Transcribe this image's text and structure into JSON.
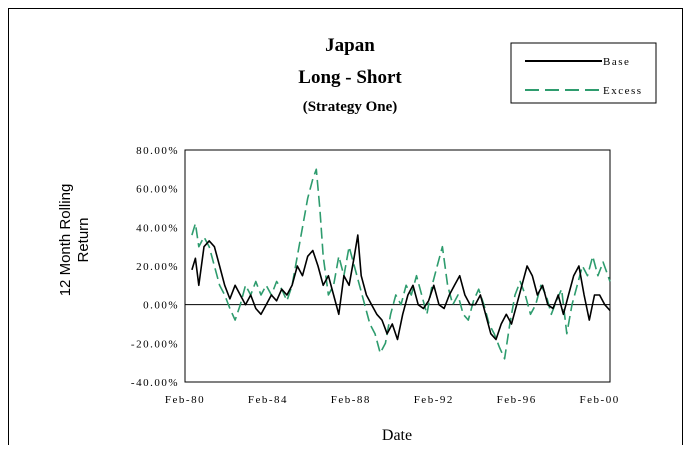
{
  "chart_data": {
    "type": "line",
    "title": [
      "Japan",
      "Long - Short",
      "(Strategy One)"
    ],
    "xlabel": "Date",
    "ylabel": [
      "12 Month Rolling",
      "Return"
    ],
    "x_start": "1980-02",
    "x_end": "2000-08",
    "x_tick_labels": [
      "Feb-80",
      "Feb-84",
      "Feb-88",
      "Feb-92",
      "Feb-96",
      "Feb-00"
    ],
    "ylim": [
      -0.4,
      0.8
    ],
    "y_tick_labels": [
      "80.00%",
      "60.00%",
      "40.00%",
      "20.00%",
      "0.00%",
      "-20.00%",
      "-40.00%"
    ],
    "legend_position": "top-right",
    "grid": false,
    "series": [
      {
        "name": "Base",
        "color": "#000000",
        "dash": "solid",
        "points": [
          [
            "1980-06",
            0.18
          ],
          [
            "1980-08",
            0.24
          ],
          [
            "1980-10",
            0.1
          ],
          [
            "1981-01",
            0.3
          ],
          [
            "1981-04",
            0.33
          ],
          [
            "1981-07",
            0.3
          ],
          [
            "1981-10",
            0.2
          ],
          [
            "1982-01",
            0.1
          ],
          [
            "1982-04",
            0.03
          ],
          [
            "1982-07",
            0.1
          ],
          [
            "1982-10",
            0.05
          ],
          [
            "1983-01",
            0.0
          ],
          [
            "1983-04",
            0.05
          ],
          [
            "1983-07",
            -0.02
          ],
          [
            "1983-10",
            -0.05
          ],
          [
            "1984-01",
            0.0
          ],
          [
            "1984-04",
            0.05
          ],
          [
            "1984-07",
            0.02
          ],
          [
            "1984-10",
            0.08
          ],
          [
            "1985-01",
            0.05
          ],
          [
            "1985-04",
            0.1
          ],
          [
            "1985-07",
            0.2
          ],
          [
            "1985-10",
            0.15
          ],
          [
            "1986-01",
            0.25
          ],
          [
            "1986-04",
            0.28
          ],
          [
            "1986-07",
            0.2
          ],
          [
            "1986-10",
            0.1
          ],
          [
            "1987-01",
            0.15
          ],
          [
            "1987-04",
            0.05
          ],
          [
            "1987-07",
            -0.05
          ],
          [
            "1987-10",
            0.15
          ],
          [
            "1988-01",
            0.1
          ],
          [
            "1988-04",
            0.25
          ],
          [
            "1988-06",
            0.36
          ],
          [
            "1988-08",
            0.15
          ],
          [
            "1988-11",
            0.05
          ],
          [
            "1989-02",
            0.0
          ],
          [
            "1989-05",
            -0.05
          ],
          [
            "1989-08",
            -0.08
          ],
          [
            "1989-11",
            -0.15
          ],
          [
            "1990-02",
            -0.1
          ],
          [
            "1990-05",
            -0.18
          ],
          [
            "1990-08",
            -0.05
          ],
          [
            "1990-11",
            0.05
          ],
          [
            "1991-02",
            0.1
          ],
          [
            "1991-05",
            0.0
          ],
          [
            "1991-08",
            -0.02
          ],
          [
            "1991-11",
            0.02
          ],
          [
            "1992-02",
            0.1
          ],
          [
            "1992-05",
            0.0
          ],
          [
            "1992-08",
            -0.02
          ],
          [
            "1992-11",
            0.05
          ],
          [
            "1993-02",
            0.1
          ],
          [
            "1993-05",
            0.15
          ],
          [
            "1993-08",
            0.05
          ],
          [
            "1993-11",
            0.0
          ],
          [
            "1994-02",
            0.0
          ],
          [
            "1994-05",
            0.05
          ],
          [
            "1994-08",
            -0.05
          ],
          [
            "1994-11",
            -0.15
          ],
          [
            "1995-02",
            -0.18
          ],
          [
            "1995-05",
            -0.1
          ],
          [
            "1995-08",
            -0.05
          ],
          [
            "1995-11",
            -0.1
          ],
          [
            "1996-02",
            0.0
          ],
          [
            "1996-05",
            0.1
          ],
          [
            "1996-08",
            0.2
          ],
          [
            "1996-11",
            0.15
          ],
          [
            "1997-02",
            0.05
          ],
          [
            "1997-05",
            0.1
          ],
          [
            "1997-08",
            0.0
          ],
          [
            "1997-11",
            -0.02
          ],
          [
            "1998-02",
            0.05
          ],
          [
            "1998-05",
            -0.05
          ],
          [
            "1998-08",
            0.05
          ],
          [
            "1998-11",
            0.15
          ],
          [
            "1999-02",
            0.2
          ],
          [
            "1999-05",
            0.05
          ],
          [
            "1999-08",
            -0.08
          ],
          [
            "1999-11",
            0.05
          ],
          [
            "2000-02",
            0.05
          ],
          [
            "2000-05",
            0.0
          ],
          [
            "2000-08",
            -0.03
          ]
        ]
      },
      {
        "name": "Excess",
        "color": "#2e9c6e",
        "dash": "dashed",
        "points": [
          [
            "1980-06",
            0.36
          ],
          [
            "1980-08",
            0.42
          ],
          [
            "1980-10",
            0.3
          ],
          [
            "1981-01",
            0.35
          ],
          [
            "1981-04",
            0.3
          ],
          [
            "1981-07",
            0.2
          ],
          [
            "1981-10",
            0.1
          ],
          [
            "1982-01",
            0.05
          ],
          [
            "1982-04",
            -0.02
          ],
          [
            "1982-07",
            -0.08
          ],
          [
            "1982-10",
            0.0
          ],
          [
            "1983-01",
            0.1
          ],
          [
            "1983-04",
            0.05
          ],
          [
            "1983-07",
            0.12
          ],
          [
            "1983-10",
            0.05
          ],
          [
            "1984-01",
            0.1
          ],
          [
            "1984-04",
            0.05
          ],
          [
            "1984-07",
            0.12
          ],
          [
            "1984-10",
            0.08
          ],
          [
            "1985-01",
            0.02
          ],
          [
            "1985-04",
            0.1
          ],
          [
            "1985-07",
            0.25
          ],
          [
            "1985-10",
            0.4
          ],
          [
            "1986-01",
            0.55
          ],
          [
            "1986-04",
            0.65
          ],
          [
            "1986-06",
            0.7
          ],
          [
            "1986-08",
            0.5
          ],
          [
            "1986-10",
            0.25
          ],
          [
            "1987-01",
            0.05
          ],
          [
            "1987-04",
            0.1
          ],
          [
            "1987-07",
            0.25
          ],
          [
            "1987-10",
            0.15
          ],
          [
            "1988-01",
            0.3
          ],
          [
            "1988-04",
            0.2
          ],
          [
            "1988-07",
            0.1
          ],
          [
            "1988-10",
            0.0
          ],
          [
            "1989-01",
            -0.1
          ],
          [
            "1989-04",
            -0.15
          ],
          [
            "1989-07",
            -0.25
          ],
          [
            "1989-10",
            -0.2
          ],
          [
            "1990-01",
            -0.05
          ],
          [
            "1990-04",
            0.05
          ],
          [
            "1990-07",
            0.0
          ],
          [
            "1990-10",
            0.1
          ],
          [
            "1991-01",
            0.05
          ],
          [
            "1991-04",
            0.15
          ],
          [
            "1991-07",
            0.05
          ],
          [
            "1991-10",
            -0.05
          ],
          [
            "1992-01",
            0.1
          ],
          [
            "1992-04",
            0.2
          ],
          [
            "1992-07",
            0.3
          ],
          [
            "1992-10",
            0.1
          ],
          [
            "1993-01",
            0.0
          ],
          [
            "1993-04",
            0.05
          ],
          [
            "1993-07",
            -0.05
          ],
          [
            "1993-10",
            -0.08
          ],
          [
            "1994-01",
            0.02
          ],
          [
            "1994-04",
            0.08
          ],
          [
            "1994-07",
            0.0
          ],
          [
            "1994-10",
            -0.1
          ],
          [
            "1995-01",
            -0.15
          ],
          [
            "1995-04",
            -0.22
          ],
          [
            "1995-07",
            -0.28
          ],
          [
            "1995-10",
            -0.1
          ],
          [
            "1996-01",
            0.05
          ],
          [
            "1996-04",
            0.12
          ],
          [
            "1996-07",
            0.05
          ],
          [
            "1996-10",
            -0.05
          ],
          [
            "1997-01",
            0.0
          ],
          [
            "1997-04",
            0.1
          ],
          [
            "1997-07",
            0.05
          ],
          [
            "1997-10",
            -0.05
          ],
          [
            "1998-01",
            0.02
          ],
          [
            "1998-04",
            0.08
          ],
          [
            "1998-07",
            -0.15
          ],
          [
            "1998-10",
            0.0
          ],
          [
            "1999-01",
            0.1
          ],
          [
            "1999-04",
            0.2
          ],
          [
            "1999-07",
            0.15
          ],
          [
            "1999-10",
            0.25
          ],
          [
            "2000-01",
            0.15
          ],
          [
            "2000-04",
            0.22
          ],
          [
            "2000-08",
            0.12
          ]
        ]
      }
    ]
  }
}
